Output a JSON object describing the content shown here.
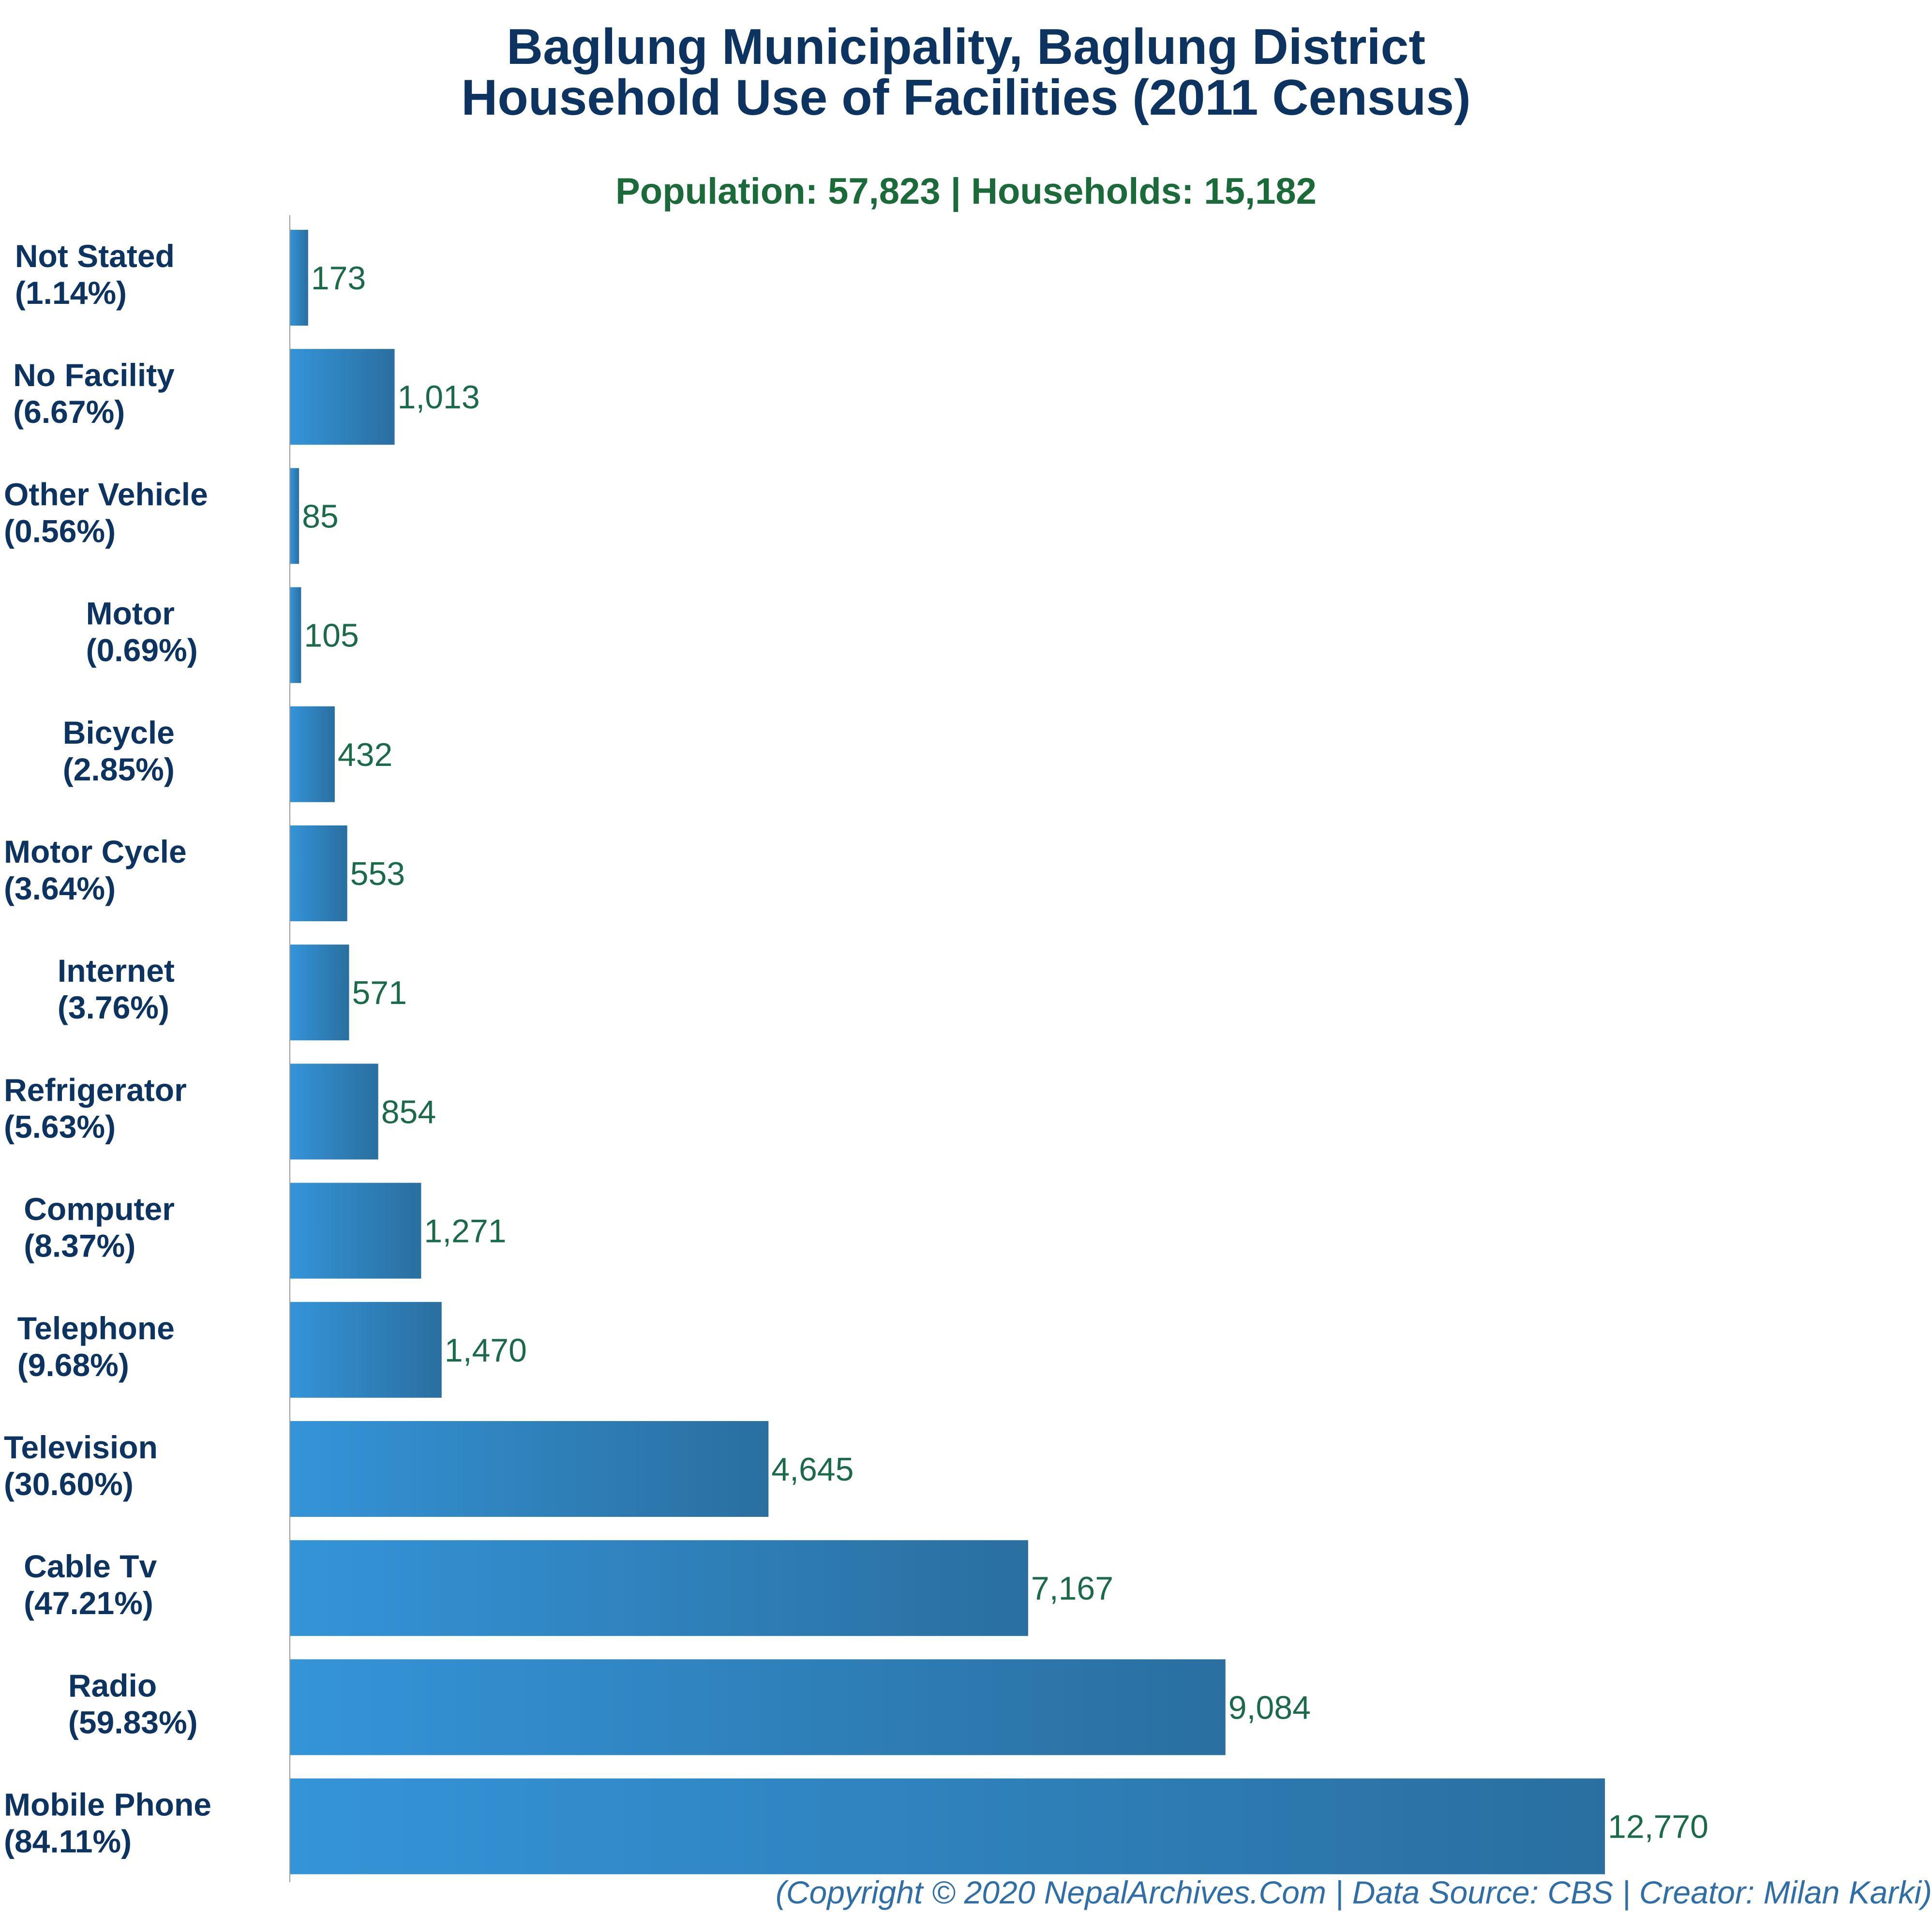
{
  "chart_data": {
    "type": "bar",
    "orientation": "horizontal",
    "title": [
      "Baglung Municipality, Baglung District",
      "Household Use of Facilities (2011 Census)"
    ],
    "subtitle": "Population: 57,823 | Households: 15,182",
    "footer": "(Copyright © 2020 NepalArchives.Com | Data Source: CBS | Creator: Milan Karki)",
    "categories": [
      "Not Stated",
      "No Facility",
      "Other Vehicle",
      "Motor",
      "Bicycle",
      "Motor Cycle",
      "Internet",
      "Refrigerator",
      "Computer",
      "Telephone",
      "Television",
      "Cable Tv",
      "Radio",
      "Mobile Phone"
    ],
    "percent_labels": [
      "(1.14%)",
      "(6.67%)",
      "(0.56%)",
      "(0.69%)",
      "(2.85%)",
      "(3.64%)",
      "(3.76%)",
      "(5.63%)",
      "(8.37%)",
      "(9.68%)",
      "(30.60%)",
      "(47.21%)",
      "(59.83%)",
      "(84.11%)"
    ],
    "values": [
      173,
      1013,
      85,
      105,
      432,
      553,
      571,
      854,
      1271,
      1470,
      4645,
      7167,
      9084,
      12770
    ],
    "value_labels": [
      "173",
      "1,013",
      "85",
      "105",
      "432",
      "553",
      "571",
      "854",
      "1,271",
      "1,470",
      "4,645",
      "7,167",
      "9,084",
      "12,770"
    ],
    "xlim": [
      0,
      12770
    ],
    "grid": false,
    "legend": "none",
    "colors": {
      "bar_start": "#3494d8",
      "bar_end": "#2a6fa0",
      "category_text": "#0d3461",
      "value_text": "#1b6b4a",
      "title": "#0d3461",
      "subtitle": "#1b6b3a",
      "footer": "#2f6ea6"
    }
  }
}
